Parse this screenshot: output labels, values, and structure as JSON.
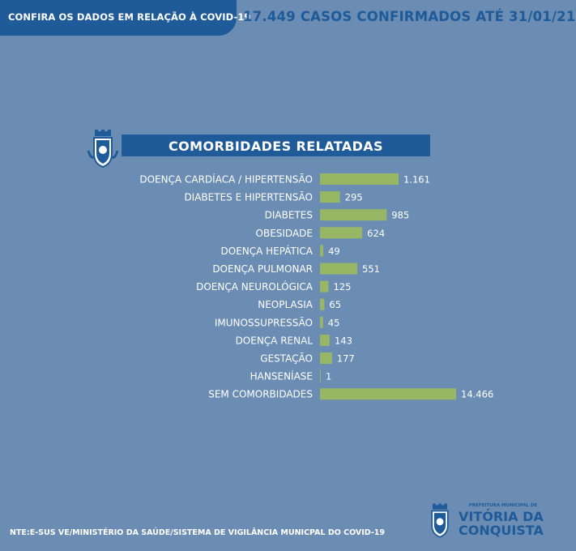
{
  "banner": {
    "left_text": "CONFIRA OS DADOS EM RELAÇÃO À COVID-19",
    "headline": "17.449 CASOS CONFIRMADOS ATÉ 31/01/21"
  },
  "chart_data": {
    "type": "bar",
    "orientation": "horizontal",
    "title": "COMORBIDADES RELATADAS",
    "categories": [
      "DOENÇA CARDÍACA / HIPERTENSÃO",
      "DIABETES E HIPERTENSÃO",
      "DIABETES",
      "OBESIDADE",
      "DOENÇA HEPÁTICA",
      "DOENÇA PULMONAR",
      "DOENÇA NEUROLÓGICA",
      "NEOPLASIA",
      "IMUNOSSUPRESSÃO",
      "DOENÇA RENAL",
      "GESTAÇÃO",
      "HANSENÍASE",
      "SEM COMORBIDADES"
    ],
    "values": [
      1161,
      295,
      985,
      624,
      49,
      551,
      125,
      65,
      45,
      143,
      177,
      1,
      14466
    ],
    "value_labels": [
      "1.161",
      "295",
      "985",
      "624",
      "49",
      "551",
      "125",
      "65",
      "45",
      "143",
      "177",
      "1",
      "14.466"
    ],
    "bar_color": "#97b765",
    "scale_note": "broken axis: SEM COMORBIDADES bar drawn truncated"
  },
  "footer": {
    "source": "NTE:E-SUS VE/MINISTÉRIO DA SAÚDE/SISTEMA DE VIGILÂNCIA MUNICPAL DO COVID-19",
    "logo_line1": "PREFEITURA MUNICIPAL DE",
    "logo_line2": "VITÓRIA DA",
    "logo_line3": "CONQUISTA"
  },
  "icons": {
    "crest": "municipal-crest-icon"
  },
  "colors": {
    "background": "#6b8db4",
    "dark_blue": "#1f5a99",
    "bar": "#97b765",
    "text": "#ffffff"
  }
}
